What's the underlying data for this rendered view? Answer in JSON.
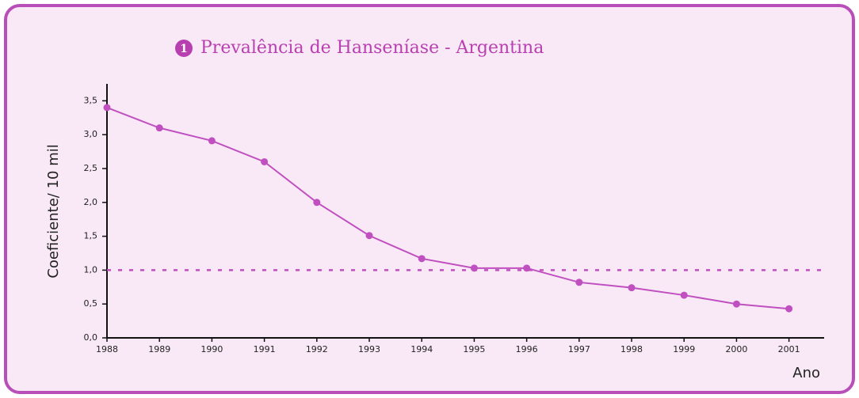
{
  "chart_data": {
    "type": "line",
    "title_marker": "1",
    "title": "Prevalência de Hanseníase - Argentina",
    "y_label": "Coeficiente/ 10 mil",
    "x_label": "Ano",
    "x": [
      1988,
      1989,
      1990,
      1991,
      1992,
      1993,
      1994,
      1995,
      1996,
      1997,
      1998,
      1999,
      2000,
      2001
    ],
    "xlim": [
      1988,
      2001.67
    ],
    "xticks": [
      1988,
      1989,
      1990,
      1991,
      1992,
      1993,
      1994,
      1995,
      1996,
      1997,
      1998,
      1999,
      2000,
      2001
    ],
    "series": [
      {
        "name": "Argentina",
        "color": "#c04fc0",
        "values": [
          3.4,
          3.1,
          2.91,
          2.6,
          2.0,
          1.51,
          1.17,
          1.03,
          1.03,
          0.82,
          0.74,
          0.63,
          0.5,
          0.43
        ]
      }
    ],
    "ylim": [
      0,
      3.75
    ],
    "yticks": [
      {
        "value": 0,
        "label": "0,0"
      },
      {
        "value": 0.5,
        "label": "0,5"
      },
      {
        "value": 1,
        "label": "1,0"
      },
      {
        "value": 1.5,
        "label": "1,5"
      },
      {
        "value": 2,
        "label": "2,0"
      },
      {
        "value": 2.5,
        "label": "2,5"
      },
      {
        "value": 3,
        "label": "3,0"
      },
      {
        "value": 3.5,
        "label": "3,5"
      }
    ],
    "reference_line": {
      "value": 1,
      "color": "#c04fc0"
    }
  }
}
